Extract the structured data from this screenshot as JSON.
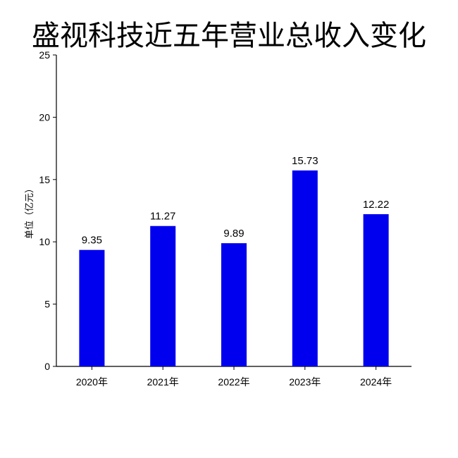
{
  "chart_data": {
    "type": "bar",
    "title": "盛视科技近五年营业总收入变化",
    "ylabel": "单位（亿元）",
    "xlabel": "",
    "categories": [
      "2020年",
      "2021年",
      "2022年",
      "2023年",
      "2024年"
    ],
    "values": [
      9.35,
      11.27,
      9.89,
      15.73,
      12.22
    ],
    "value_labels": [
      "9.35",
      "11.27",
      "9.89",
      "15.73",
      "12.22"
    ],
    "ylim": [
      0,
      25
    ],
    "yticks": [
      "0",
      "5",
      "10",
      "15",
      "20",
      "25"
    ],
    "ytick_values": [
      0,
      5,
      10,
      15,
      20,
      25
    ],
    "bar_color": "#0000ee",
    "grid": false,
    "legend": "none"
  }
}
